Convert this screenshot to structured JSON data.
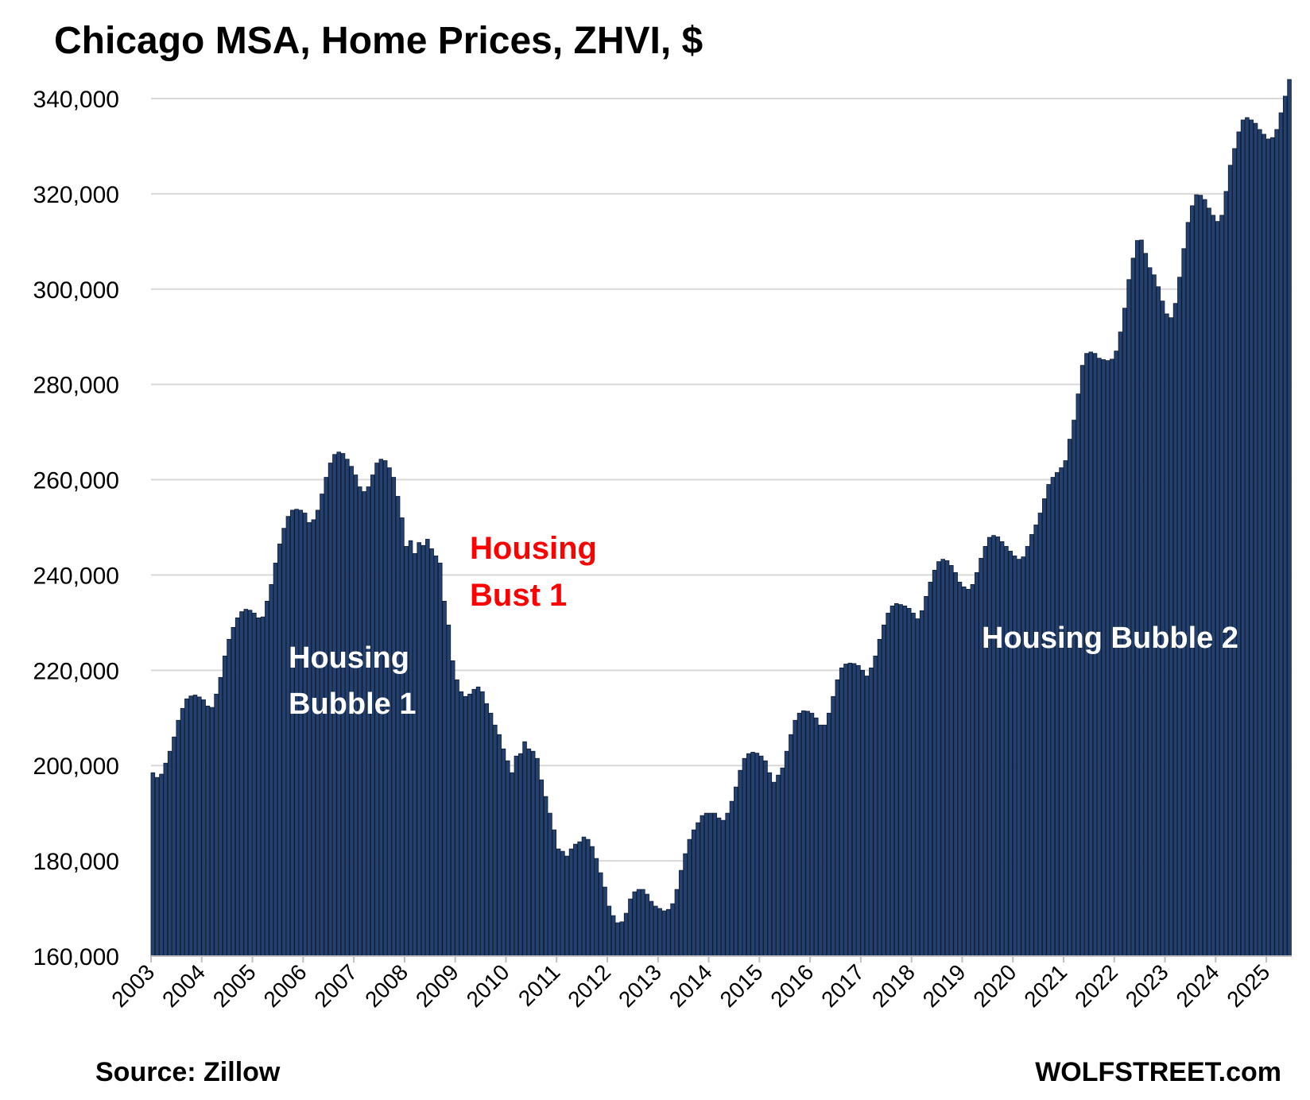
{
  "chart_data": {
    "type": "bar",
    "title": "Chicago MSA, Home Prices, ZHVI, $",
    "source": "Source: Zillow",
    "brand": "WOLFSTREET.com",
    "frequency": "monthly",
    "start_year": 2003,
    "ylim": [
      160000,
      344000
    ],
    "y_ticks": [
      160000,
      180000,
      200000,
      220000,
      240000,
      260000,
      280000,
      300000,
      320000,
      340000
    ],
    "y_tick_labels": [
      "160,000",
      "180,000",
      "200,000",
      "220,000",
      "240,000",
      "260,000",
      "280,000",
      "300,000",
      "320,000",
      "340,000"
    ],
    "x_tick_labels": [
      "2003",
      "2004",
      "2005",
      "2006",
      "2007",
      "2008",
      "2009",
      "2010",
      "2011",
      "2012",
      "2013",
      "2014",
      "2015",
      "2016",
      "2017",
      "2018",
      "2019",
      "2020",
      "2021",
      "2022",
      "2023",
      "2024",
      "2025"
    ],
    "grid": true,
    "bar_color": "#24406e",
    "annotations": [
      {
        "id": "bubble1",
        "lines": [
          "Housing",
          "Bubble 1"
        ],
        "color": "#ffffff"
      },
      {
        "id": "bust1",
        "lines": [
          "Housing",
          "Bust 1"
        ],
        "color": "#ff0000"
      },
      {
        "id": "bubble2",
        "lines": [
          "Housing Bubble 2"
        ],
        "color": "#ffffff"
      }
    ],
    "values": [
      198500,
      197500,
      198200,
      200500,
      203000,
      206000,
      209500,
      212000,
      214000,
      214600,
      214800,
      214400,
      213800,
      212500,
      212200,
      215000,
      218500,
      223000,
      226500,
      229000,
      231000,
      232300,
      232800,
      232600,
      232000,
      231000,
      231200,
      234500,
      238000,
      242500,
      246500,
      249800,
      252300,
      253600,
      253800,
      253600,
      253000,
      251000,
      251600,
      253600,
      257000,
      260500,
      263500,
      265300,
      265800,
      265500,
      264300,
      262800,
      261000,
      258500,
      257500,
      258500,
      261000,
      263500,
      264300,
      264000,
      262500,
      260500,
      256500,
      252000,
      246000,
      247200,
      244500,
      246800,
      246200,
      247500,
      245500,
      244000,
      242500,
      234500,
      229500,
      222000,
      218000,
      215500,
      214500,
      215000,
      216000,
      216500,
      215500,
      213000,
      211000,
      208500,
      206500,
      203500,
      201000,
      198500,
      202000,
      202500,
      205000,
      203500,
      203000,
      201500,
      197000,
      193500,
      190000,
      186500,
      182500,
      182000,
      181000,
      182500,
      183500,
      184000,
      185000,
      184500,
      183000,
      180500,
      177500,
      174500,
      170500,
      168500,
      167000,
      167200,
      169000,
      172000,
      173500,
      174000,
      174000,
      173000,
      171500,
      170500,
      170000,
      169500,
      169800,
      171000,
      174000,
      178000,
      181500,
      184500,
      186500,
      188000,
      189500,
      190000,
      190000,
      190000,
      189000,
      188500,
      190000,
      192500,
      195500,
      199000,
      201500,
      202500,
      202800,
      202600,
      202000,
      201000,
      198500,
      196500,
      198000,
      199500,
      203000,
      206500,
      209500,
      211000,
      211500,
      211400,
      211000,
      210000,
      208500,
      208500,
      211000,
      214500,
      218000,
      220500,
      221300,
      221500,
      221400,
      221000,
      220000,
      218800,
      220500,
      223000,
      226500,
      229500,
      232000,
      233500,
      234000,
      233800,
      233500,
      233000,
      232000,
      230800,
      232500,
      235500,
      238500,
      241000,
      242800,
      243300,
      243000,
      242000,
      240500,
      238500,
      237500,
      237000,
      238000,
      240500,
      243500,
      246000,
      247900,
      248300,
      248000,
      247000,
      246000,
      245000,
      244000,
      243300,
      243800,
      246000,
      248500,
      250500,
      253000,
      256000,
      259000,
      260500,
      261500,
      262500,
      264000,
      268500,
      272500,
      278000,
      284000,
      286500,
      286800,
      286500,
      285500,
      285200,
      285000,
      285300,
      287000,
      291000,
      296000,
      302000,
      306500,
      310200,
      310300,
      307500,
      304500,
      303000,
      300500,
      297500,
      294800,
      294000,
      297000,
      302500,
      308500,
      314000,
      317500,
      319800,
      319700,
      318800,
      317000,
      315500,
      314200,
      315500,
      320500,
      326000,
      329500,
      333000,
      335500,
      336000,
      335500,
      334800,
      333500,
      332500,
      331500,
      331800,
      333500,
      337000,
      340500,
      344000
    ]
  }
}
